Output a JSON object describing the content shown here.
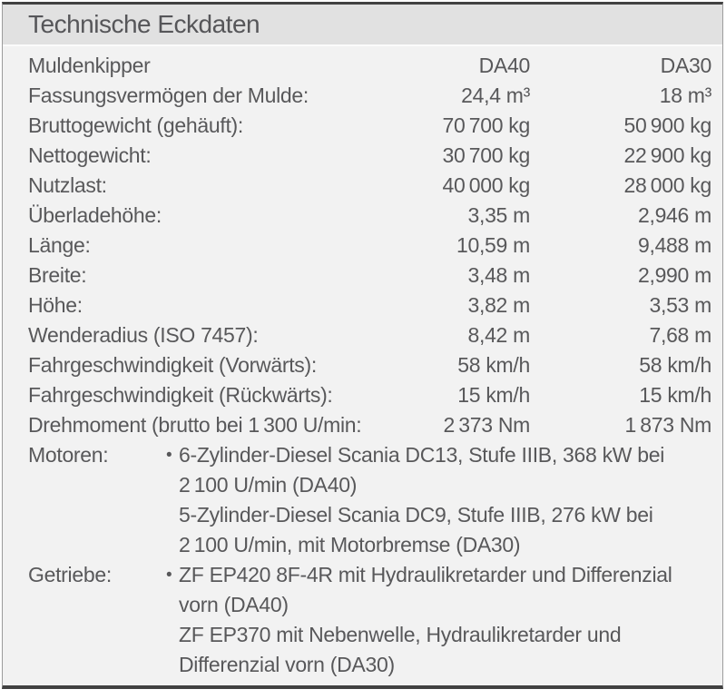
{
  "header": {
    "title": "Technische Eckdaten"
  },
  "colors": {
    "header_bg": "#e1e1e1",
    "body_bg": "#f2f2f2",
    "rule_dark": "#414141",
    "rule_side": "#9c9c9c",
    "text": "#58585a"
  },
  "table": {
    "rows": [
      {
        "label": "Muldenkipper",
        "da40": "DA40",
        "da30": "DA30"
      },
      {
        "label": "Fassungsvermögen der Mulde:",
        "da40": "24,4 m³",
        "da30": "18 m³"
      },
      {
        "label": "Bruttogewicht (gehäuft):",
        "da40": "70 700 kg",
        "da30": "50 900 kg"
      },
      {
        "label": "Nettogewicht:",
        "da40": "30 700 kg",
        "da30": "22 900 kg"
      },
      {
        "label": "Nutzlast:",
        "da40": "40 000 kg",
        "da30": "28 000 kg"
      },
      {
        "label": "Überladehöhe:",
        "da40": "3,35 m",
        "da30": "2,946 m"
      },
      {
        "label": "Länge:",
        "da40": "10,59 m",
        "da30": "9,488 m"
      },
      {
        "label": "Breite:",
        "da40": "3,48 m",
        "da30": "2,990 m"
      },
      {
        "label": "Höhe:",
        "da40": "3,82 m",
        "da30": "3,53 m"
      },
      {
        "label": "Wenderadius (ISO 7457):",
        "da40": "8,42 m",
        "da30": "7,68 m"
      },
      {
        "label": "Fahrgeschwindigkeit (Vorwärts):",
        "da40": "58 km/h",
        "da30": "58 km/h"
      },
      {
        "label": "Fahrgeschwindigkeit (Rückwärts):",
        "da40": "15 km/h",
        "da30": "15 km/h"
      },
      {
        "label": "Drehmoment (brutto bei 1 300 U/min:",
        "da40": "2 373 Nm",
        "da30": "1 873 Nm"
      }
    ]
  },
  "motoren": {
    "label": "Motoren:",
    "lines": [
      {
        "bullet": "•",
        "text": "6-Zylinder-Diesel Scania DC13, Stufe IIIB, 368 kW bei"
      },
      {
        "bullet": "",
        "text": "2 100 U/min (DA40)"
      },
      {
        "bullet": "",
        "text": "5-Zylinder-Diesel Scania DC9, Stufe IIIB, 276 kW bei"
      },
      {
        "bullet": "",
        "text": "2 100 U/min, mit Motorbremse (DA30)"
      }
    ]
  },
  "getriebe": {
    "label": "Getriebe:",
    "lines": [
      {
        "bullet": "•",
        "text": "ZF EP420 8F-4R mit Hydraulikretarder und Differenzial"
      },
      {
        "bullet": "",
        "text": "vorn (DA40)"
      },
      {
        "bullet": "",
        "text": "ZF EP370 mit Nebenwelle, Hydraulikretarder und"
      },
      {
        "bullet": "",
        "text": "Differenzial vorn (DA30)"
      }
    ]
  }
}
